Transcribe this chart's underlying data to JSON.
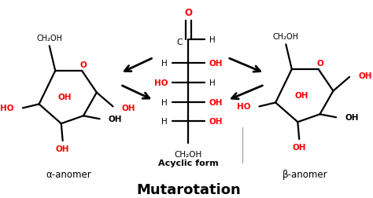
{
  "title": "Mutarotation",
  "title_fontsize": 13,
  "title_fontweight": "bold",
  "background_color": "#ffffff",
  "black": "#000000",
  "red": "#ff0000",
  "fig_width": 4.74,
  "fig_height": 2.53,
  "alpha_label": "α-anomer",
  "beta_label": "β-anomer",
  "acyclic_label": "Acyclic form"
}
